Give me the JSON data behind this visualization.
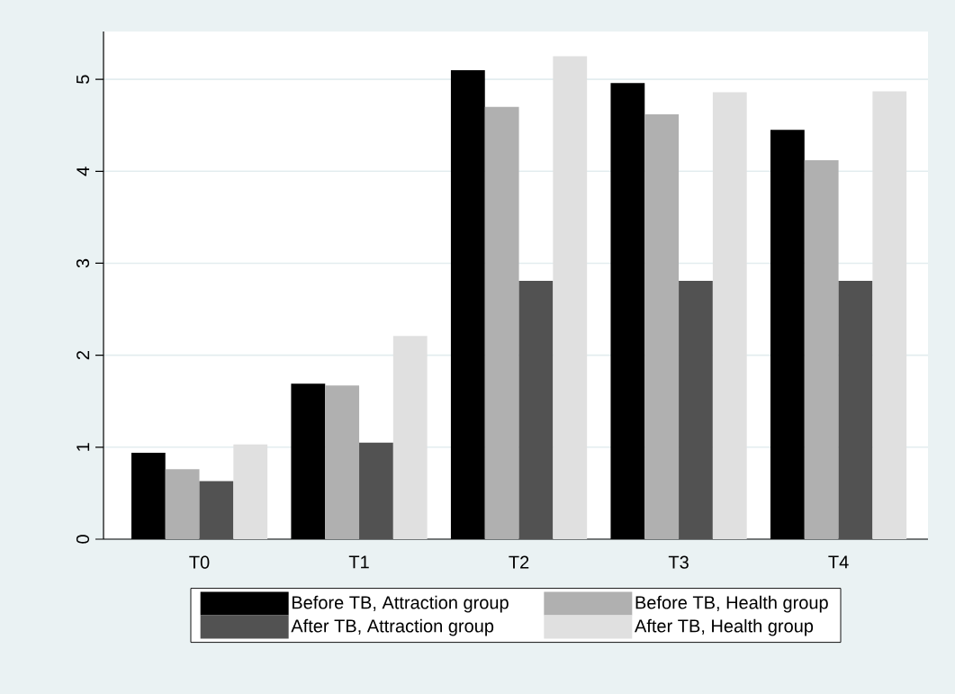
{
  "chart_data": {
    "type": "bar",
    "categories": [
      "T0",
      "T1",
      "T2",
      "T3",
      "T4"
    ],
    "series": [
      {
        "name": "Before TB, Attraction group",
        "color": "#000000",
        "values": [
          0.94,
          1.69,
          5.1,
          4.96,
          4.45
        ]
      },
      {
        "name": "Before TB, Health group",
        "color": "#b0b0b0",
        "values": [
          0.76,
          1.67,
          4.7,
          4.62,
          4.12
        ]
      },
      {
        "name": "After TB, Attraction group",
        "color": "#525252",
        "values": [
          0.63,
          1.05,
          2.81,
          2.81,
          2.81
        ]
      },
      {
        "name": "After TB, Health group",
        "color": "#e0e0e0",
        "values": [
          1.03,
          2.21,
          5.25,
          4.86,
          4.87
        ]
      }
    ],
    "ylim": [
      0,
      5.52
    ],
    "yticks": [
      0,
      1,
      2,
      3,
      4,
      5
    ],
    "grid": "y",
    "legend": "bottom"
  }
}
